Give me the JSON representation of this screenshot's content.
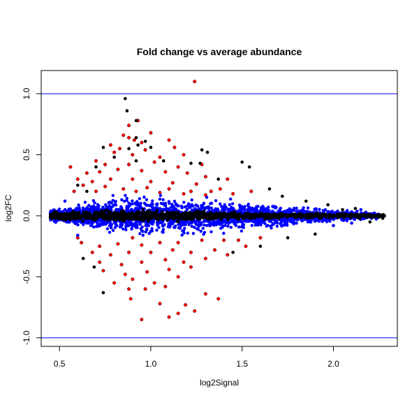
{
  "chart_data": {
    "type": "scatter",
    "title": "Fold change vs average abundance",
    "xlabel": "log2Signal",
    "ylabel": "log2FC",
    "xlim": [
      0.4,
      2.35
    ],
    "ylim": [
      -1.07,
      1.19
    ],
    "x_ticks": [
      0.5,
      1.0,
      1.5,
      2.0
    ],
    "x_tick_labels": [
      "0.5",
      "1.0",
      "1.5",
      "2.0"
    ],
    "y_ticks": [
      -1.0,
      -0.5,
      0.0,
      0.5,
      1.0
    ],
    "y_tick_labels": [
      "-1.0",
      "-0.5",
      "0.0",
      "0.5",
      "1.0"
    ],
    "grid": false,
    "reference_lines": [
      {
        "axis": "y",
        "value": 1.0,
        "color": "#0000ff"
      },
      {
        "axis": "y",
        "value": -1.0,
        "color": "#0000ff"
      }
    ],
    "colors": {
      "black": "#000000",
      "blue": "#0000ff",
      "red": "#ff0000"
    },
    "series": [
      {
        "color": "#ff0000",
        "points": [
          [
            1.24,
            1.1
          ],
          [
            0.93,
            0.78
          ],
          [
            0.88,
            0.74
          ],
          [
            0.85,
            0.66
          ],
          [
            0.88,
            0.64
          ],
          [
            0.91,
            0.62
          ],
          [
            1.0,
            0.68
          ],
          [
            0.95,
            0.6
          ],
          [
            1.1,
            0.62
          ],
          [
            1.13,
            0.56
          ],
          [
            0.78,
            0.58
          ],
          [
            0.8,
            0.52
          ],
          [
            0.83,
            0.55
          ],
          [
            0.9,
            0.5
          ],
          [
            0.97,
            0.54
          ],
          [
            1.05,
            0.48
          ],
          [
            1.18,
            0.5
          ],
          [
            0.7,
            0.45
          ],
          [
            0.75,
            0.42
          ],
          [
            0.88,
            0.42
          ],
          [
            1.02,
            0.44
          ],
          [
            1.15,
            0.4
          ],
          [
            1.28,
            0.42
          ],
          [
            0.65,
            0.35
          ],
          [
            0.72,
            0.36
          ],
          [
            0.82,
            0.38
          ],
          [
            0.95,
            0.37
          ],
          [
            1.08,
            0.36
          ],
          [
            1.2,
            0.35
          ],
          [
            1.3,
            0.32
          ],
          [
            1.42,
            0.3
          ],
          [
            0.56,
            0.4
          ],
          [
            0.6,
            0.3
          ],
          [
            0.68,
            0.28
          ],
          [
            0.78,
            0.3
          ],
          [
            0.9,
            0.3
          ],
          [
            1.0,
            0.28
          ],
          [
            1.12,
            0.27
          ],
          [
            1.25,
            0.26
          ],
          [
            1.38,
            0.22
          ],
          [
            0.63,
            0.25
          ],
          [
            0.75,
            0.24
          ],
          [
            0.85,
            0.22
          ],
          [
            0.98,
            0.23
          ],
          [
            1.1,
            0.22
          ],
          [
            1.22,
            0.2
          ],
          [
            1.33,
            0.2
          ],
          [
            1.45,
            0.18
          ],
          [
            0.58,
            0.2
          ],
          [
            0.7,
            0.2
          ],
          [
            0.92,
            0.2
          ],
          [
            1.05,
            0.19
          ],
          [
            1.18,
            0.18
          ],
          [
            1.3,
            0.17
          ],
          [
            0.62,
            -0.22
          ],
          [
            0.72,
            -0.25
          ],
          [
            0.82,
            -0.23
          ],
          [
            0.95,
            -0.24
          ],
          [
            1.05,
            -0.22
          ],
          [
            1.15,
            -0.22
          ],
          [
            1.28,
            -0.2
          ],
          [
            1.4,
            -0.2
          ],
          [
            0.68,
            -0.3
          ],
          [
            0.78,
            -0.32
          ],
          [
            0.88,
            -0.3
          ],
          [
            1.0,
            -0.3
          ],
          [
            1.12,
            -0.28
          ],
          [
            1.22,
            -0.3
          ],
          [
            1.35,
            -0.28
          ],
          [
            0.72,
            -0.38
          ],
          [
            0.84,
            -0.4
          ],
          [
            0.95,
            -0.38
          ],
          [
            1.08,
            -0.36
          ],
          [
            1.18,
            -0.38
          ],
          [
            1.3,
            -0.35
          ],
          [
            1.42,
            -0.32
          ],
          [
            0.74,
            -0.45
          ],
          [
            0.86,
            -0.48
          ],
          [
            0.98,
            -0.46
          ],
          [
            1.1,
            -0.44
          ],
          [
            1.22,
            -0.42
          ],
          [
            0.8,
            -0.55
          ],
          [
            0.9,
            -0.52
          ],
          [
            1.02,
            -0.55
          ],
          [
            1.15,
            -0.5
          ],
          [
            0.88,
            -0.6
          ],
          [
            0.97,
            -0.6
          ],
          [
            1.08,
            -0.58
          ],
          [
            0.89,
            -0.68
          ],
          [
            1.19,
            -0.73
          ],
          [
            1.05,
            -0.72
          ],
          [
            1.37,
            -0.68
          ],
          [
            1.24,
            -0.78
          ],
          [
            1.15,
            -0.8
          ],
          [
            0.95,
            -0.85
          ],
          [
            1.1,
            -0.83
          ],
          [
            1.3,
            -0.64
          ],
          [
            1.52,
            -0.25
          ],
          [
            1.48,
            -0.2
          ],
          [
            0.6,
            -0.18
          ],
          [
            1.6,
            -0.18
          ],
          [
            1.55,
            0.2
          ],
          [
            0.9,
            -0.18
          ]
        ]
      },
      {
        "color": "#000000",
        "points": [
          [
            0.86,
            0.96
          ],
          [
            0.87,
            0.86
          ],
          [
            0.92,
            0.78
          ],
          [
            0.92,
            0.64
          ],
          [
            0.97,
            0.61
          ],
          [
            0.93,
            0.58
          ],
          [
            0.88,
            0.55
          ],
          [
            1.0,
            0.56
          ],
          [
            0.74,
            0.56
          ],
          [
            1.28,
            0.54
          ],
          [
            1.31,
            0.52
          ],
          [
            1.27,
            0.43
          ],
          [
            1.22,
            0.43
          ],
          [
            1.07,
            0.45
          ],
          [
            0.92,
            0.45
          ],
          [
            0.8,
            0.48
          ],
          [
            1.5,
            0.44
          ],
          [
            1.54,
            0.4
          ],
          [
            0.7,
            0.4
          ],
          [
            1.37,
            0.3
          ],
          [
            1.65,
            0.22
          ],
          [
            1.72,
            0.16
          ],
          [
            1.85,
            0.12
          ],
          [
            2.12,
            0.06
          ],
          [
            2.05,
            0.05
          ],
          [
            1.97,
            0.09
          ],
          [
            0.65,
            0.2
          ],
          [
            0.6,
            0.25
          ],
          [
            0.74,
            -0.63
          ],
          [
            0.69,
            -0.42
          ],
          [
            0.63,
            -0.35
          ],
          [
            1.45,
            -0.3
          ],
          [
            1.6,
            -0.25
          ],
          [
            1.75,
            -0.18
          ],
          [
            1.9,
            -0.15
          ],
          [
            2.2,
            -0.05
          ],
          [
            2.25,
            0.01
          ],
          [
            2.27,
            -0.02
          ]
        ]
      },
      {
        "color": "#0000ff",
        "points": [
          [
            0.53,
            0.12
          ],
          [
            0.6,
            -0.16
          ],
          [
            2.0,
            -0.08
          ],
          [
            2.1,
            -0.06
          ],
          [
            2.15,
            0.05
          ]
        ]
      }
    ],
    "bands": [
      {
        "color": "#0000ff",
        "x_start": 0.45,
        "x_end": 2.25,
        "half_width": [
          0.05,
          0.15,
          0.19,
          0.18,
          0.15,
          0.1,
          0.06,
          0.03
        ]
      },
      {
        "color": "#000000",
        "x_start": 0.45,
        "x_end": 2.28,
        "half_width": [
          0.04,
          0.05,
          0.06,
          0.05,
          0.04,
          0.03,
          0.025,
          0.02
        ]
      }
    ]
  }
}
